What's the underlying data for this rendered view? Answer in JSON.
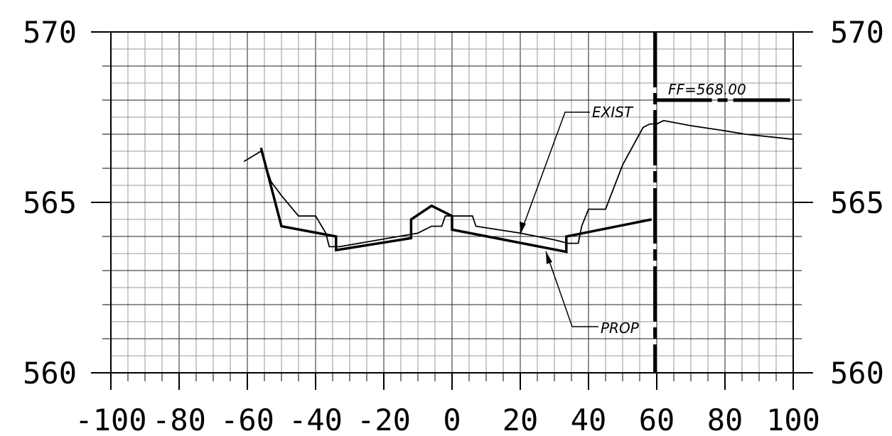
{
  "chart_data": {
    "type": "line",
    "title": "",
    "xlabel": "",
    "ylabel": "",
    "xlim": [
      -100,
      100
    ],
    "ylim": [
      560,
      570
    ],
    "x_ticks": [
      -100,
      -80,
      -60,
      -40,
      -20,
      0,
      20,
      40,
      60,
      80,
      100
    ],
    "x_tick_labels": [
      "-100",
      "-80",
      "-60",
      "-40",
      "-20",
      "0",
      "20",
      "40",
      "60",
      "80",
      "100"
    ],
    "y_ticks": [
      560,
      565,
      570
    ],
    "y_tick_labels": [
      "560",
      "565",
      "570"
    ],
    "grid": true,
    "series": [
      {
        "name": "EXIST",
        "style": "thin",
        "x": [
          -61,
          -56,
          -53,
          -50,
          -45,
          -40,
          -37,
          -36,
          -33,
          -10,
          -6,
          -3,
          -2,
          1,
          6,
          7,
          20,
          30,
          34,
          37,
          38,
          40,
          45,
          50,
          56,
          58,
          60,
          62,
          70,
          80,
          86,
          100
        ],
        "y": [
          566.2,
          566.5,
          565.6,
          565.2,
          564.6,
          564.6,
          564.1,
          563.7,
          563.7,
          564.1,
          564.3,
          564.3,
          564.6,
          564.6,
          564.6,
          564.3,
          564.1,
          563.9,
          563.8,
          563.8,
          564.3,
          564.8,
          564.8,
          566.1,
          567.2,
          567.3,
          567.3,
          567.4,
          567.25,
          567.1,
          567.0,
          566.85
        ]
      },
      {
        "name": "PROP",
        "style": "thick",
        "x": [
          -56,
          -50,
          -34,
          -34,
          -12,
          -12,
          -6,
          0,
          0,
          33.5,
          33.5,
          58.5
        ],
        "y": [
          566.6,
          564.3,
          564.0,
          563.6,
          563.95,
          564.5,
          564.9,
          564.6,
          564.2,
          563.55,
          564.0,
          564.5
        ]
      }
    ],
    "reference_lines": [
      {
        "kind": "vertical-dashed",
        "x": 59.5,
        "y_range": [
          560,
          570
        ]
      },
      {
        "kind": "horizontal-dashed",
        "y": 568.0,
        "x_range": [
          59.5,
          100
        ]
      }
    ],
    "annotations": {
      "ff": "FF=568.00",
      "exist": "EXIST",
      "prop": "PROP"
    }
  }
}
